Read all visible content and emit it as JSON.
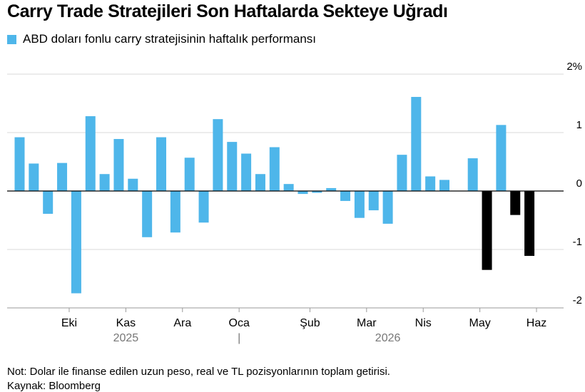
{
  "title": "Carry Trade Stratejileri Son Haftalarda Sekteye Uğradı",
  "legend": {
    "label": "ABD doları fonlu carry stratejisinin haftalık performansı"
  },
  "colors": {
    "positive": "#4EB6EA",
    "negative": "#000000",
    "grid": "#D9D9D9",
    "axis": "#000000",
    "muted": "#777777"
  },
  "chart_data": {
    "type": "bar",
    "series": [
      {
        "name": "ABD doları fonlu carry stratejisinin haftalık performansı",
        "values": [
          0.92,
          0.47,
          -0.39,
          0.48,
          -1.75,
          1.28,
          0.29,
          0.89,
          0.21,
          -0.79,
          0.92,
          -0.71,
          0.57,
          -0.54,
          1.23,
          0.84,
          0.64,
          0.29,
          0.75,
          0.12,
          -0.05,
          -0.03,
          0.05,
          -0.17,
          -0.46,
          -0.33,
          -0.56,
          0.62,
          1.61,
          0.25,
          0.19,
          null,
          0.56,
          -1.35,
          1.13,
          -0.41,
          -1.11
        ]
      }
    ],
    "negative_highlight_from_index": 33,
    "month_labels": [
      "Eki",
      "Kas",
      "Ara",
      "Oca",
      "Şub",
      "Mar",
      "Nis",
      "May",
      "Haz"
    ],
    "month_bar_index": [
      3.5,
      7.5,
      11.5,
      15.5,
      20.5,
      24.5,
      28.5,
      32.5,
      36.5
    ],
    "year_labels": [
      "2025",
      "2026"
    ],
    "year_bar_index": [
      7.5,
      26
    ],
    "year_divider_bar_index": 15.5,
    "year_divider_label": "|",
    "ylim": [
      -2,
      2
    ],
    "yticks": [
      -2,
      -1,
      0,
      1,
      2
    ],
    "ytick_labels": [
      "-2",
      "-1",
      "0",
      "1",
      "2%"
    ],
    "grid": true,
    "legend_position": "top-left"
  },
  "footer": {
    "note": "Not: Dolar ile finanse edilen uzun peso, real ve TL pozisyonlarının toplam getirisi.",
    "source": "Kaynak: Bloomberg"
  }
}
